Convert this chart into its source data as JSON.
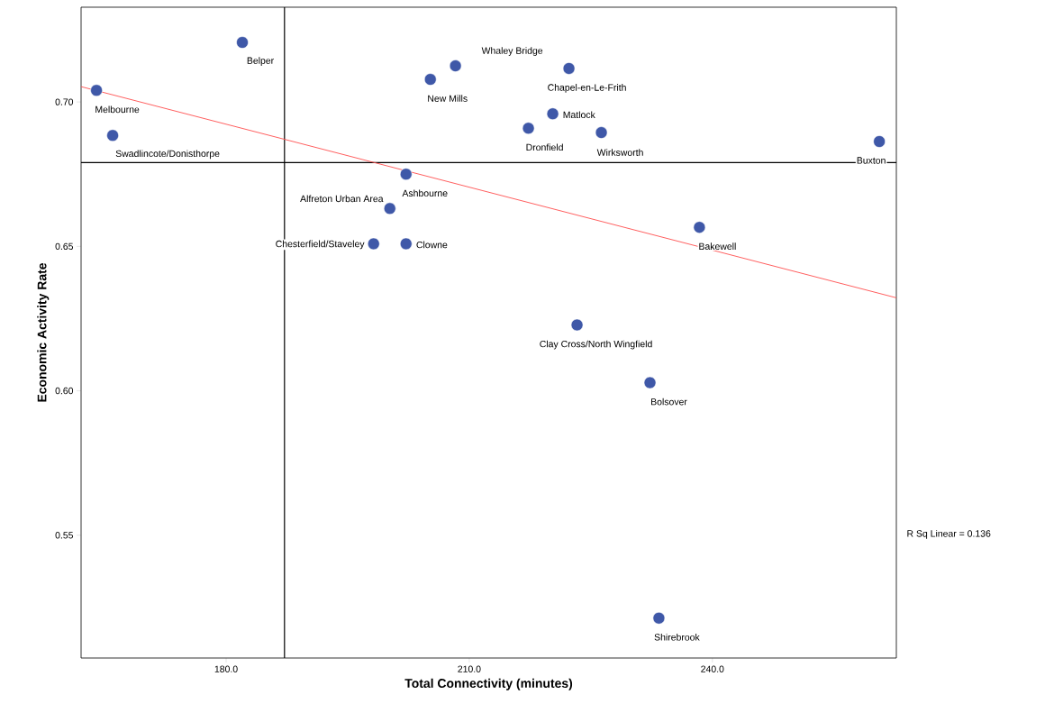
{
  "chart_data": {
    "type": "scatter",
    "xlabel": "Total Connectivity (minutes)",
    "ylabel": "Economic Activity Rate",
    "xlim": [
      162.1,
      262.7
    ],
    "ylim": [
      0.5075,
      0.7328
    ],
    "xticks": [
      {
        "value": 180,
        "label": "180.0"
      },
      {
        "value": 210,
        "label": "210.0"
      },
      {
        "value": 240,
        "label": "240.0"
      }
    ],
    "yticks": [
      {
        "value": 0.55,
        "label": "0.55"
      },
      {
        "value": 0.6,
        "label": "0.60"
      },
      {
        "value": 0.65,
        "label": "0.65"
      },
      {
        "value": 0.7,
        "label": "0.70"
      }
    ],
    "grid": false,
    "series": [
      {
        "marker": "circle",
        "color": "#3f58a8",
        "x": [
          164.0,
          182.0,
          166.0,
          205.2,
          208.3,
          222.3,
          220.3,
          217.3,
          226.3,
          260.6,
          202.2,
          200.2,
          198.2,
          202.2,
          238.4,
          223.3,
          232.3,
          233.4
        ],
        "values": [
          0.704,
          0.7206,
          0.6884,
          0.7078,
          0.7125,
          0.7116,
          0.6959,
          0.6909,
          0.6894,
          0.6863,
          0.675,
          0.6631,
          0.6509,
          0.6509,
          0.6566,
          0.6228,
          0.6028,
          0.5213
        ]
      },
      {
        "type": "line",
        "marker": "none",
        "color": "#ff4d4d",
        "x": [
          162.1,
          262.7
        ],
        "values": [
          0.7053,
          0.6322
        ]
      }
    ],
    "ref_lines": [
      {
        "axis": "x",
        "value": 187.2,
        "color": "#000000"
      },
      {
        "axis": "y",
        "value": 0.679,
        "color": "#000000"
      }
    ],
    "annotations": [
      {
        "text": "Melbourne",
        "x": 164.0,
        "y": 0.704
      },
      {
        "text": "Belper",
        "x": 182.0,
        "y": 0.7206
      },
      {
        "text": "Swadlincote/Donisthorpe",
        "x": 166.0,
        "y": 0.6884
      },
      {
        "text": "New Mills",
        "x": 205.2,
        "y": 0.7078
      },
      {
        "text": "Whaley Bridge",
        "x": 208.3,
        "y": 0.7125
      },
      {
        "text": "Chapel-en-Le-Frith",
        "x": 222.3,
        "y": 0.7116
      },
      {
        "text": "Matlock",
        "x": 220.3,
        "y": 0.6959
      },
      {
        "text": "Dronfield",
        "x": 217.3,
        "y": 0.6909
      },
      {
        "text": "Wirksworth",
        "x": 226.3,
        "y": 0.6894
      },
      {
        "text": "Buxton",
        "x": 260.6,
        "y": 0.6863
      },
      {
        "text": "Ashbourne",
        "x": 202.2,
        "y": 0.675
      },
      {
        "text": "Alfreton Urban Area",
        "x": 200.2,
        "y": 0.6631
      },
      {
        "text": "Chesterfield/Staveley",
        "x": 198.2,
        "y": 0.6509
      },
      {
        "text": "Clowne",
        "x": 202.2,
        "y": 0.6509
      },
      {
        "text": "Bakewell",
        "x": 238.4,
        "y": 0.6566
      },
      {
        "text": "Clay Cross/North Wingfield",
        "x": 223.3,
        "y": 0.6228
      },
      {
        "text": "Bolsover",
        "x": 232.3,
        "y": 0.6028
      },
      {
        "text": "Shirebrook",
        "x": 233.4,
        "y": 0.5213
      },
      "R Sq Linear = 0.136"
    ]
  }
}
